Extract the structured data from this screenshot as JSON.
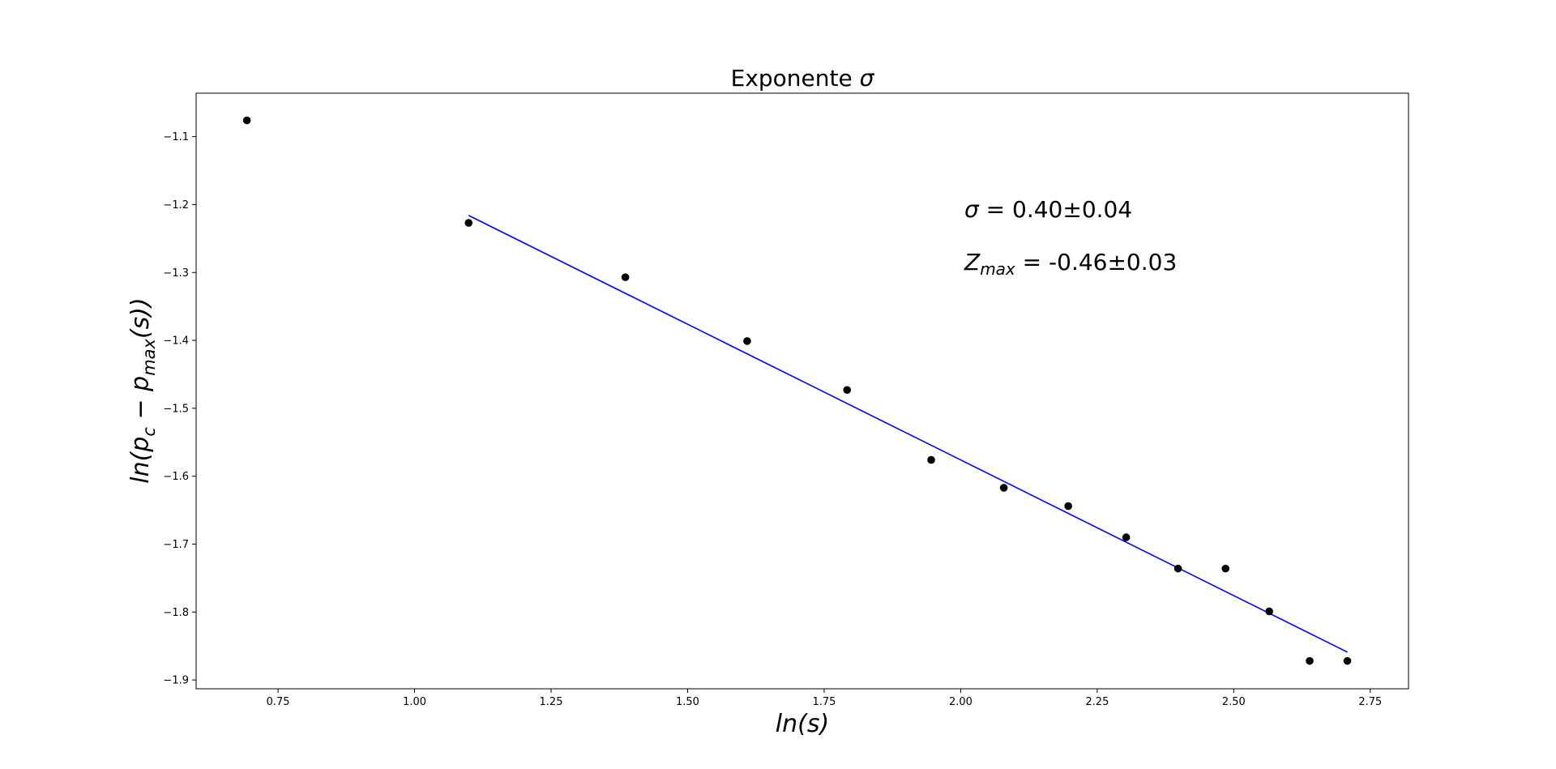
{
  "chart_data": {
    "type": "scatter",
    "title": {
      "text": "Exponente ",
      "symbol": "σ"
    },
    "xlabel": {
      "main": "ln(s)"
    },
    "ylabel": {
      "pre": "ln(p",
      "sub1": "c",
      "mid": " − p",
      "sub2": "max",
      "post": "(s))"
    },
    "xlim": [
      0.6,
      2.82
    ],
    "ylim": [
      -1.913,
      -1.036
    ],
    "xticks": [
      0.75,
      1.0,
      1.25,
      1.5,
      1.75,
      2.0,
      2.25,
      2.5,
      2.75
    ],
    "xtick_labels": [
      "0.75",
      "1.00",
      "1.25",
      "1.50",
      "1.75",
      "2.00",
      "2.25",
      "2.50",
      "2.75"
    ],
    "yticks": [
      -1.1,
      -1.2,
      -1.3,
      -1.4,
      -1.5,
      -1.6,
      -1.7,
      -1.8,
      -1.9
    ],
    "ytick_labels": [
      "−1.1",
      "−1.2",
      "−1.3",
      "−1.4",
      "−1.5",
      "−1.6",
      "−1.7",
      "−1.8",
      "−1.9"
    ],
    "series": [
      {
        "kind": "points",
        "color": "#000000",
        "x": [
          0.693,
          1.099,
          1.386,
          1.609,
          1.792,
          1.946,
          2.079,
          2.197,
          2.303,
          2.398,
          2.485,
          2.565,
          2.639,
          2.708
        ],
        "y": [
          -1.076,
          -1.227,
          -1.307,
          -1.401,
          -1.473,
          -1.576,
          -1.617,
          -1.644,
          -1.69,
          -1.736,
          -1.736,
          -1.799,
          -1.872,
          -1.872
        ]
      },
      {
        "kind": "fit-line",
        "color": "#0000ff",
        "x": [
          1.099,
          2.708
        ],
        "y": [
          -1.216,
          -1.859
        ]
      }
    ],
    "annotations": {
      "sigma": {
        "symbol": "σ",
        "text": " = 0.40±0.04"
      },
      "zmax": {
        "main": "Z",
        "sub": "max",
        "text": " = -0.46±0.03"
      }
    },
    "grid": false,
    "legend": "none"
  }
}
